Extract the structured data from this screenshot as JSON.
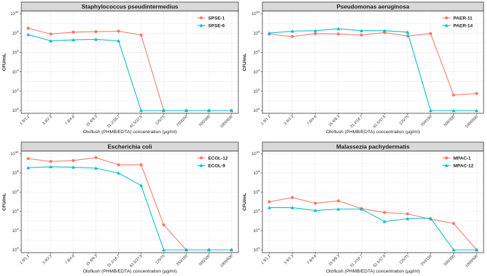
{
  "chart_data": [
    {
      "type": "line",
      "title": "Staphylococcus pseudintermedius",
      "xlabel": "Otoflush (PHMB/EDTA) concentration (µg/ml)",
      "ylabel": "CFU/mL",
      "y_scale": "log10",
      "ylim_log10": [
        0,
        10
      ],
      "y_ticks_log10": [
        0,
        2,
        4,
        6,
        8,
        10
      ],
      "legend_position": "top-right",
      "grid": true,
      "categories": [
        "1.9/1.1",
        "3.9/2.3",
        "7.8/4.6",
        "15.6/9.3",
        "31.2/18.7",
        "62.5/37.5",
        "125/75",
        "250/150",
        "500/300",
        "1000/600"
      ],
      "series": [
        {
          "name": "SPSE-1",
          "color": "#f8766d",
          "marker": "circle",
          "values_log10": [
            8.5,
            7.9,
            8.1,
            8.15,
            8.2,
            7.8,
            0,
            0,
            0,
            0
          ]
        },
        {
          "name": "SPSE-6",
          "color": "#00bfc4",
          "marker": "triangle",
          "values_log10": [
            7.85,
            7.2,
            7.3,
            7.35,
            7.2,
            0,
            0,
            0,
            0,
            0
          ]
        }
      ]
    },
    {
      "type": "line",
      "title": "Pseudomonas aeruginosa",
      "xlabel": "Otoflush (PHMB/EDTA) concentration (µg/ml)",
      "ylabel": "CFU/mL",
      "y_scale": "log10",
      "ylim_log10": [
        0,
        10
      ],
      "y_ticks_log10": [
        0,
        2,
        4,
        6,
        8,
        10
      ],
      "legend_position": "top-right",
      "grid": true,
      "categories": [
        "1.9/1.1",
        "3.9/2.3",
        "7.8/4.6",
        "15.6/9.3",
        "31.2/18.7",
        "62.5/37.5",
        "125/75",
        "250/150",
        "500/300",
        "1000/600"
      ],
      "series": [
        {
          "name": "PAER-11",
          "color": "#f8766d",
          "marker": "circle",
          "values_log10": [
            7.9,
            7.65,
            7.95,
            7.9,
            7.8,
            8.05,
            7.7,
            7.95,
            1.6,
            1.75
          ]
        },
        {
          "name": "PAER-14",
          "color": "#00bfc4",
          "marker": "triangle",
          "values_log10": [
            8.0,
            8.2,
            8.25,
            8.45,
            8.25,
            8.25,
            8.1,
            0,
            0,
            0
          ]
        }
      ]
    },
    {
      "type": "line",
      "title": "Escherichia coli",
      "xlabel": "Otoflush (PHMB/EDTA) concentration (µg/ml)",
      "ylabel": "CFU/mL",
      "y_scale": "log10",
      "ylim_log10": [
        0,
        10
      ],
      "y_ticks_log10": [
        0,
        2,
        4,
        6,
        8,
        10
      ],
      "legend_position": "top-right",
      "grid": true,
      "categories": [
        "1.9/1.1",
        "3.9/2.3",
        "7.8/4.6",
        "15.6/9.3",
        "31.2/18.7",
        "62.5/37.5",
        "125/75",
        "250/150",
        "500/300",
        "1000/600"
      ],
      "series": [
        {
          "name": "ECOL-12",
          "color": "#f8766d",
          "marker": "circle",
          "values_log10": [
            9.5,
            9.2,
            9.3,
            9.6,
            8.85,
            8.85,
            2.6,
            0,
            0,
            0
          ]
        },
        {
          "name": "ECOL-9",
          "color": "#00bfc4",
          "marker": "triangle",
          "values_log10": [
            8.55,
            8.65,
            8.6,
            8.5,
            8.0,
            6.7,
            0,
            0,
            0,
            0
          ]
        }
      ]
    },
    {
      "type": "line",
      "title": "Malassezia pachydermatis",
      "xlabel": "Otoflush (PHMB/EDTA) concentration (µg/ml)",
      "ylabel": "CFU/mL",
      "y_scale": "log10",
      "ylim_log10": [
        0,
        10
      ],
      "y_ticks_log10": [
        0,
        2,
        4,
        6,
        8,
        10
      ],
      "legend_position": "top-right",
      "grid": true,
      "categories": [
        "1.9/1.1",
        "3.9/2.3",
        "7.8/4.6",
        "15.6/9.3",
        "31.2/18.7",
        "62.5/37.5",
        "125/75",
        "250/150",
        "500/300",
        "1000/600"
      ],
      "series": [
        {
          "name": "MPAC-1",
          "color": "#f8766d",
          "marker": "circle",
          "values_log10": [
            5.0,
            5.45,
            4.85,
            5.1,
            4.3,
            3.9,
            3.75,
            3.2,
            2.75,
            0
          ]
        },
        {
          "name": "MPAC-12",
          "color": "#00bfc4",
          "marker": "triangle",
          "values_log10": [
            4.4,
            4.4,
            4.1,
            4.25,
            4.25,
            2.95,
            3.25,
            3.3,
            0,
            0
          ]
        }
      ]
    }
  ]
}
